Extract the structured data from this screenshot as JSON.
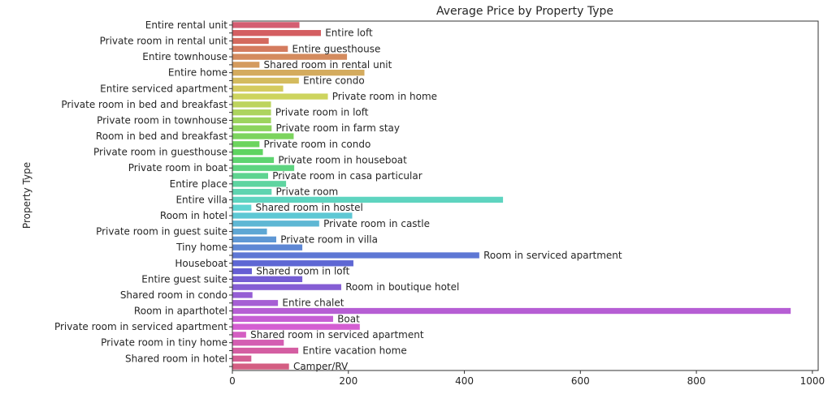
{
  "chart_data": {
    "type": "bar",
    "orientation": "horizontal",
    "title": "Average Price by Property Type",
    "xlabel": "",
    "ylabel": "Property Type",
    "xlim": [
      0,
      1010
    ],
    "xticks": [
      0,
      200,
      400,
      600,
      800,
      1000
    ],
    "grid": false,
    "palette": "husl",
    "categories": [
      "Entire rental unit",
      "Entire loft",
      "Private room in rental unit",
      "Entire guesthouse",
      "Entire townhouse",
      "Shared room in rental unit",
      "Entire home",
      "Entire condo",
      "Entire serviced apartment",
      "Private room in home",
      "Private room in bed and breakfast",
      "Private room in loft",
      "Private room in townhouse",
      "Private room in farm stay",
      "Room in bed and breakfast",
      "Private room in condo",
      "Private room in guesthouse",
      "Private room in houseboat",
      "Private room in boat",
      "Private room in casa particular",
      "Entire place",
      "Private room",
      "Entire villa",
      "Shared room in hostel",
      "Room in hotel",
      "Private room in castle",
      "Private room in guest suite",
      "Private room in villa",
      "Tiny home",
      "Room in serviced apartment",
      "Houseboat",
      "Shared room in loft",
      "Entire guest suite",
      "Room in boutique hotel",
      "Shared room in condo",
      "Entire chalet",
      "Room in aparthotel",
      "Boat",
      "Private room in serviced apartment",
      "Shared room in serviced apartment",
      "Private room in tiny home",
      "Entire vacation home",
      "Shared room in hotel",
      "Camper/RV"
    ],
    "values": [
      116,
      153,
      63,
      96,
      198,
      47,
      228,
      115,
      88,
      165,
      67,
      67,
      67,
      68,
      106,
      47,
      53,
      72,
      107,
      62,
      93,
      68,
      467,
      33,
      207,
      150,
      60,
      76,
      121,
      426,
      209,
      34,
      121,
      188,
      35,
      79,
      963,
      174,
      220,
      24,
      89,
      114,
      33,
      98
    ]
  }
}
